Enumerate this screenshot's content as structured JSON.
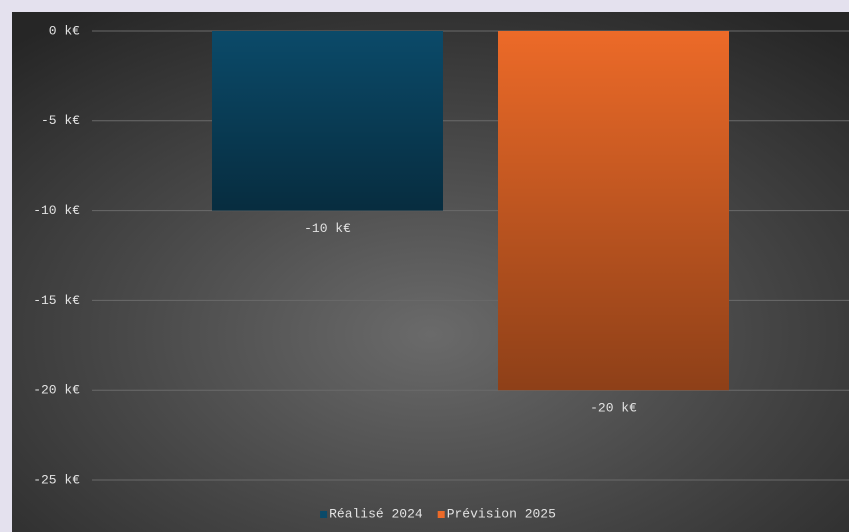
{
  "chart_data": {
    "type": "bar",
    "categories": [
      null
    ],
    "series": [
      {
        "name": "Réalisé 2024",
        "color": "#0b4a69",
        "values": [
          -10
        ],
        "value_labels": [
          "-10 k€"
        ]
      },
      {
        "name": "Prévision 2025",
        "color": "#ec6a28",
        "values": [
          -20
        ],
        "value_labels": [
          "-20 k€"
        ]
      }
    ],
    "ylim": [
      -25,
      0
    ],
    "yticks": [
      {
        "value": 0,
        "label": "0 k€"
      },
      {
        "value": -5,
        "label": "-5 k€"
      },
      {
        "value": -10,
        "label": "-10 k€"
      },
      {
        "value": -15,
        "label": "-15 k€"
      },
      {
        "value": -20,
        "label": "-20 k€"
      },
      {
        "value": -25,
        "label": "-25 k€"
      }
    ],
    "grid": true,
    "legend": "bottom"
  }
}
